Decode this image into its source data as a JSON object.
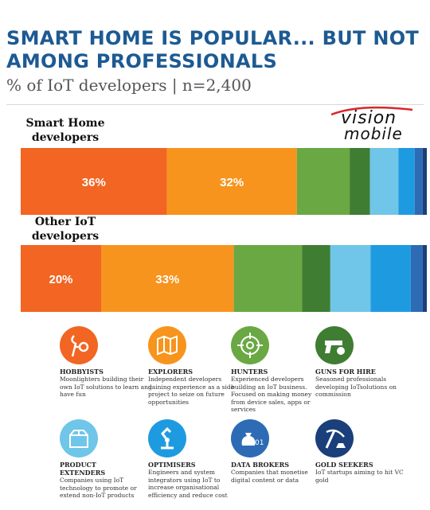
{
  "title": "SMART HOME IS POPULAR... BUT NOT AMONG PROFESSIONALS",
  "subtitle": "% of IoT developers | n=2,400",
  "logo": {
    "line1": "vision",
    "line2": "mobile"
  },
  "colors": {
    "hobbyists": "#f26522",
    "explorers": "#f7941d",
    "hunters": "#6aa843",
    "guns_for_hire": "#3f7d32",
    "product_extenders": "#6fc6e8",
    "optimisers": "#1e9be0",
    "data_brokers": "#2d6bb5",
    "gold_seekers": "#1a3f7a",
    "title": "#1d5a93"
  },
  "chart_data": {
    "type": "bar",
    "orientation": "horizontal",
    "stacked": true,
    "categories": [
      "Smart Home developers",
      "Other IoT developers"
    ],
    "series": [
      {
        "name": "Hobbyists",
        "color": "#f26522",
        "values": [
          36,
          20
        ],
        "labels": [
          "36%",
          "20%"
        ]
      },
      {
        "name": "Explorers",
        "color": "#f7941d",
        "values": [
          32,
          33
        ],
        "labels": [
          "32%",
          "33%"
        ]
      },
      {
        "name": "Hunters",
        "color": "#6aa843",
        "values": [
          13,
          17
        ],
        "labels": [
          "",
          ""
        ]
      },
      {
        "name": "Guns for hire",
        "color": "#3f7d32",
        "values": [
          5,
          7
        ],
        "labels": [
          "",
          ""
        ]
      },
      {
        "name": "Product extenders",
        "color": "#6fc6e8",
        "values": [
          7,
          10
        ],
        "labels": [
          "",
          ""
        ]
      },
      {
        "name": "Optimisers",
        "color": "#1e9be0",
        "values": [
          4,
          10
        ],
        "labels": [
          "",
          ""
        ]
      },
      {
        "name": "Data brokers",
        "color": "#2d6bb5",
        "values": [
          2,
          3
        ],
        "labels": [
          "",
          ""
        ]
      },
      {
        "name": "Gold seekers",
        "color": "#1a3f7a",
        "values": [
          1,
          1
        ],
        "labels": [
          "",
          ""
        ]
      }
    ],
    "xlim": [
      0,
      100
    ],
    "grid": false
  },
  "groups": [
    {
      "label_line1": "Smart Home",
      "label_line2": "developers"
    },
    {
      "label_line1": "Other IoT",
      "label_line2": "developers"
    }
  ],
  "personas": [
    {
      "name": "Hobbyists",
      "icon": "tools-icon",
      "description": "Moonlighters building their own IoT solutions to learn and have fun"
    },
    {
      "name": "Explorers",
      "icon": "map-icon",
      "description": "Independent developers gaining experience as a side project to seize on future opportunities"
    },
    {
      "name": "Hunters",
      "icon": "crosshair-icon",
      "description": "Experienced developers building an IoT business. Focused on making money from device sales, apps or services"
    },
    {
      "name": "Guns for hire",
      "icon": "gun-money-icon",
      "description": "Seasoned professionals developing IoTsolutions on commission"
    },
    {
      "name": "Product Extenders",
      "icon": "box-icon",
      "description": "Companies using IoT technology to promote or extend non-IoT products"
    },
    {
      "name": "Optimisers",
      "icon": "robot-arm-icon",
      "description": "Engineers and system integrators using IoT to increase organisational efficiency and reduce cost"
    },
    {
      "name": "Data brokers",
      "icon": "money-bag-binary-icon",
      "description": "Companies that monetise digital content or data"
    },
    {
      "name": "Gold seekers",
      "icon": "pickaxe-icon",
      "description": "IoT startups aiming to hit VC gold"
    }
  ]
}
